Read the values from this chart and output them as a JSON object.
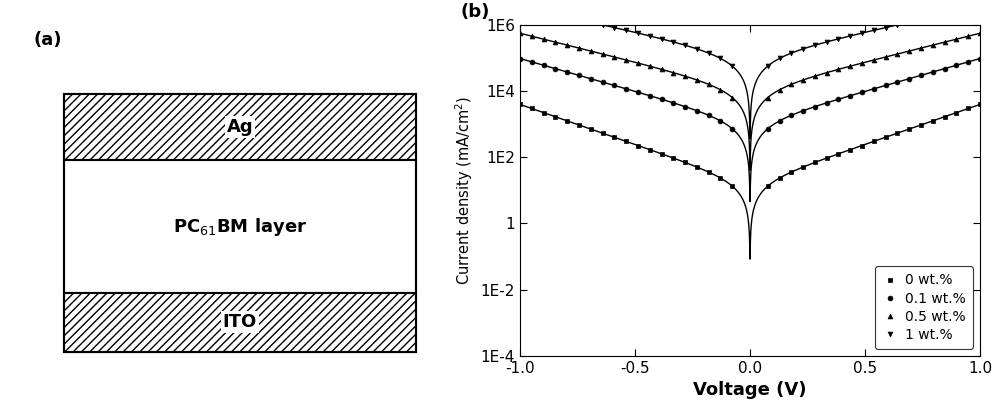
{
  "panel_a_label": "(a)",
  "panel_b_label": "(b)",
  "series": [
    {
      "label": "0 wt.%",
      "marker": "s",
      "J_sat": 30,
      "V0": 0.18
    },
    {
      "label": "0.1 wt.%",
      "marker": "o",
      "J_sat": 2000,
      "V0": 0.22
    },
    {
      "label": "0.5 wt.%",
      "marker": "^",
      "J_sat": 20000,
      "V0": 0.25
    },
    {
      "label": "1 wt.%",
      "marker": "v",
      "J_sat": 200000,
      "V0": 0.28
    }
  ],
  "J_min": 0.0003,
  "xlim": [
    -1.0,
    1.0
  ],
  "xlabel": "Voltage (V)",
  "ylabel": "Current density (mA/cm$^2$)",
  "xticks": [
    -1.0,
    -0.5,
    0.0,
    0.5,
    1.0
  ],
  "xtick_labels": [
    "-1.0",
    "-0.5",
    "0.0",
    "0.5",
    "1.0"
  ],
  "ytick_values": [
    0.0001,
    0.01,
    1,
    100.0,
    10000.0,
    1000000.0
  ],
  "ytick_labels": [
    "1E-4",
    "1E-2",
    "1",
    "1E2",
    "1E4",
    "1E6"
  ]
}
